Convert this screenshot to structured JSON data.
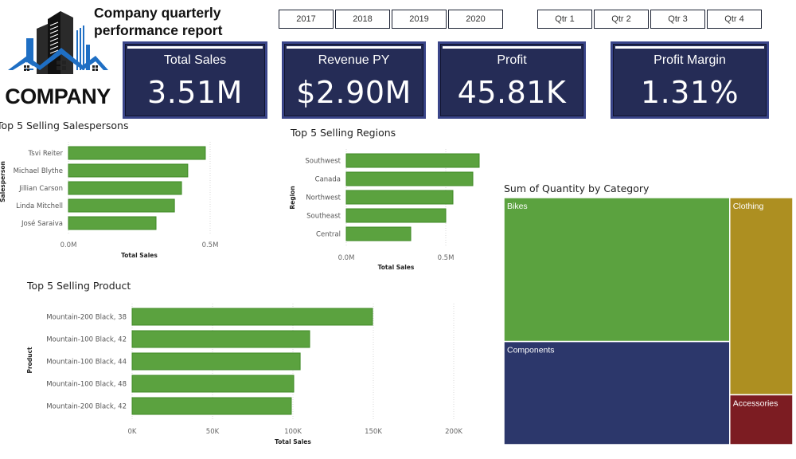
{
  "header": {
    "logo_text": "COMPANY",
    "report_title_line1": "Company quarterly",
    "report_title_line2": "performance report"
  },
  "slicers": {
    "years": [
      "2017",
      "2018",
      "2019",
      "2020"
    ],
    "quarters": [
      "Qtr 1",
      "Qtr 2",
      "Qtr 3",
      "Qtr 4"
    ]
  },
  "kpis": [
    {
      "label": "Total Sales",
      "value": "3.51M"
    },
    {
      "label": "Revenue PY",
      "value": "$2.90M"
    },
    {
      "label": "Profit",
      "value": "45.81K"
    },
    {
      "label": "Profit Margin",
      "value": "1.31%"
    }
  ],
  "colors": {
    "bar": "#5ba23f",
    "kpi_bg": "#252c56",
    "bikes": "#5ba23f",
    "components": "#2c376b",
    "clothing": "#ad8f21",
    "accessories": "#7c1c22"
  },
  "chart_data": [
    {
      "id": "salespersons",
      "type": "bar",
      "orientation": "horizontal",
      "title": "Top 5 Selling Salespersons",
      "xlabel": "Total Sales",
      "ylabel": "Salesperson",
      "categories": [
        "Tsvi Reiter",
        "Michael Blythe",
        "Jillian Carson",
        "Linda Mitchell",
        "José Saraiva"
      ],
      "values": [
        0.483,
        0.421,
        0.399,
        0.374,
        0.309
      ],
      "unit": "M",
      "xlim": [
        0,
        0.5
      ],
      "ticks": [
        {
          "v": 0,
          "label": "0.0M"
        },
        {
          "v": 0.5,
          "label": "0.5M"
        }
      ],
      "grid": true
    },
    {
      "id": "regions",
      "type": "bar",
      "orientation": "horizontal",
      "title": "Top 5 Selling Regions",
      "xlabel": "Total Sales",
      "ylabel": "Region",
      "categories": [
        "Southwest",
        "Canada",
        "Northwest",
        "Southeast",
        "Central"
      ],
      "values": [
        0.668,
        0.636,
        0.536,
        0.5,
        0.324
      ],
      "unit": "M",
      "xlim": [
        0,
        0.5
      ],
      "ticks": [
        {
          "v": 0,
          "label": "0.0M"
        },
        {
          "v": 0.5,
          "label": "0.5M"
        }
      ],
      "grid": true
    },
    {
      "id": "products",
      "type": "bar",
      "orientation": "horizontal",
      "title": "Top 5 Selling Product",
      "xlabel": "Total Sales",
      "ylabel": "Product",
      "categories": [
        "Mountain-200 Black, 38",
        "Mountain-100 Black, 42",
        "Mountain-100 Black, 44",
        "Mountain-100 Black, 48",
        "Mountain-200 Black, 42"
      ],
      "values": [
        149.5,
        110.4,
        104.5,
        100.5,
        99.0
      ],
      "unit": "K",
      "xlim": [
        0,
        200
      ],
      "ticks": [
        {
          "v": 0,
          "label": "0K"
        },
        {
          "v": 50,
          "label": "50K"
        },
        {
          "v": 100,
          "label": "100K"
        },
        {
          "v": 150,
          "label": "150K"
        },
        {
          "v": 200,
          "label": "200K"
        }
      ],
      "grid": true
    },
    {
      "id": "category",
      "type": "treemap",
      "title": "Sum of Quantity by Category",
      "items": [
        {
          "label": "Bikes",
          "share": 45.5,
          "color": "#5ba23f"
        },
        {
          "label": "Components",
          "share": 32.6,
          "color": "#2c376b"
        },
        {
          "label": "Clothing",
          "share": 17.4,
          "color": "#ad8f21"
        },
        {
          "label": "Accessories",
          "share": 4.4,
          "color": "#7c1c22"
        }
      ]
    }
  ]
}
